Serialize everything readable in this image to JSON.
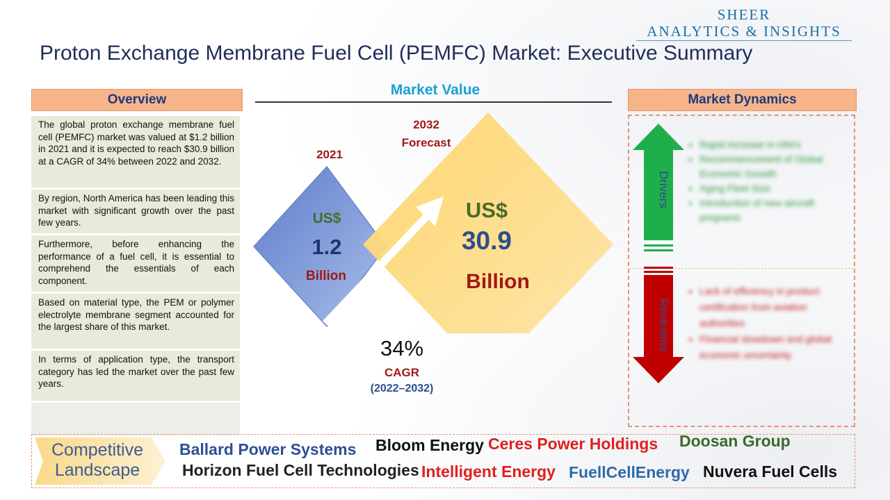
{
  "logo": {
    "line1": "SHEER",
    "line2": "ANALYTICS & INSIGHTS"
  },
  "title": "Proton Exchange Membrane Fuel Cell (PEMFC) Market: Executive Summary",
  "overview": {
    "header": "Overview",
    "items": [
      "The global proton exchange membrane fuel cell (PEMFC) market was valued at $1.2 billion in 2021 and it is expected to reach $30.9 billion at a CAGR of 34% between 2022 and 2032.",
      "By region, North America has been leading this market with significant growth over the past few years.",
      "Furthermore, before enhancing the performance of a fuel cell, it is essential to comprehend the essentials of each component.",
      "Based on material type, the PEM or polymer electrolyte membrane segment accounted for the largest share of this market.",
      "In terms of application type, the transport category has led the market over the past few years."
    ]
  },
  "market_value": {
    "title": "Market Value",
    "year_2021": "2021",
    "currency_2021": "US$",
    "value_2021": "1.2",
    "unit_2021": "Billion",
    "year_2032": "2032",
    "forecast": "Forecast",
    "currency_2032": "US$",
    "value_2032": "30.9",
    "unit_2032": "Billion",
    "cagr_value": "34%",
    "cagr_label": "CAGR",
    "cagr_period": "(2022–2032)"
  },
  "dynamics": {
    "header": "Market Dynamics",
    "drivers_label": "Drivers",
    "restraints_label": "Restraints",
    "drivers": [
      "Rapid increase in HNI's",
      "Recommencement of Global Economic Growth",
      "Aging Fleet Size",
      "Introduction of new aircraft programs"
    ],
    "restraints": [
      "Lack of efficiency in product certification from aviation authorities",
      "Financial slowdown and global economic uncertainty"
    ]
  },
  "competitive": {
    "label_line1": "Competitive",
    "label_line2": "Landscape",
    "companies": [
      {
        "name": "Ballard Power Systems",
        "color": "#2e4f96"
      },
      {
        "name": "Bloom Energy",
        "color": "#111111"
      },
      {
        "name": "Ceres Power Holdings",
        "color": "#e02020"
      },
      {
        "name": "Doosan Group",
        "color": "#3a6b2a"
      },
      {
        "name": "Horizon Fuel Cell Technologies",
        "color": "#222222"
      },
      {
        "name": "Intelligent Energy",
        "color": "#e02020"
      },
      {
        "name": "FuellCellEnergy",
        "color": "#2f6aa8"
      },
      {
        "name": "Nuvera Fuel Cells",
        "color": "#111111"
      }
    ]
  }
}
